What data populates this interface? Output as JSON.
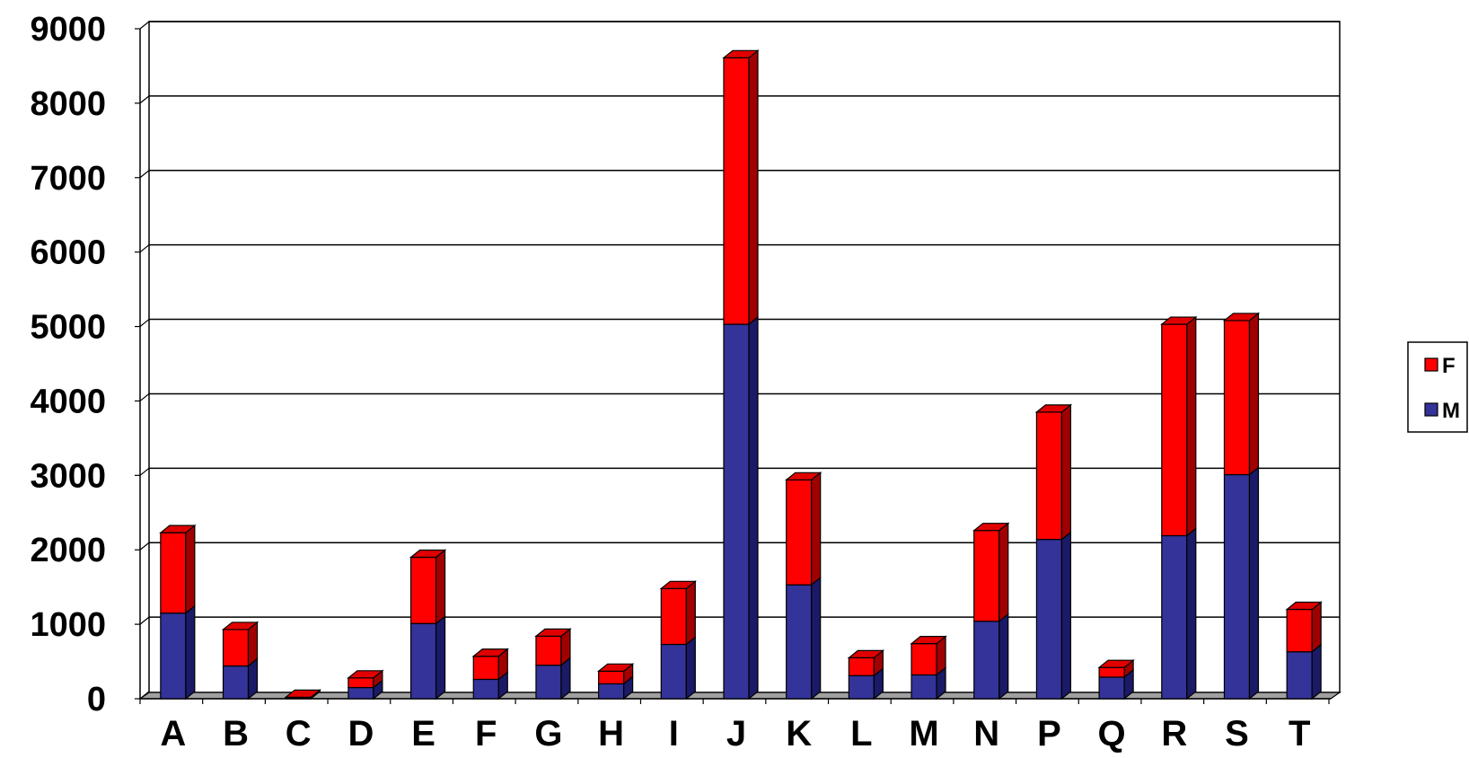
{
  "chart_data": {
    "type": "bar",
    "stacked": true,
    "three_d": true,
    "title": "",
    "xlabel": "",
    "ylabel": "",
    "ylim": [
      0,
      9000
    ],
    "y_ticks": [
      0,
      1000,
      2000,
      3000,
      4000,
      5000,
      6000,
      7000,
      8000,
      9000
    ],
    "y_tick_labels": [
      "0",
      "1000",
      "2000",
      "3000",
      "4000",
      "5000",
      "6000",
      "7000",
      "8000",
      "9000"
    ],
    "grid": true,
    "legend_position": "right",
    "categories": [
      "A",
      "B",
      "C",
      "D",
      "E",
      "F",
      "G",
      "H",
      "I",
      "J",
      "K",
      "L",
      "M",
      "N",
      "P",
      "Q",
      "R",
      "S",
      "T"
    ],
    "series": [
      {
        "name": "M",
        "color": "#333399",
        "side_color": "#1a1a66",
        "top_color": "#4040a0",
        "values": [
          1150,
          440,
          10,
          150,
          1010,
          260,
          450,
          200,
          730,
          5030,
          1530,
          310,
          320,
          1040,
          2140,
          290,
          2190,
          3010,
          630
        ]
      },
      {
        "name": "F",
        "color": "#ff0000",
        "side_color": "#a00000",
        "top_color": "#e00000",
        "values": [
          1080,
          490,
          10,
          130,
          890,
          310,
          390,
          170,
          750,
          3580,
          1410,
          240,
          420,
          1220,
          1710,
          130,
          2840,
          2070,
          570
        ]
      }
    ],
    "legend": {
      "entries": [
        "F",
        "M"
      ]
    }
  }
}
